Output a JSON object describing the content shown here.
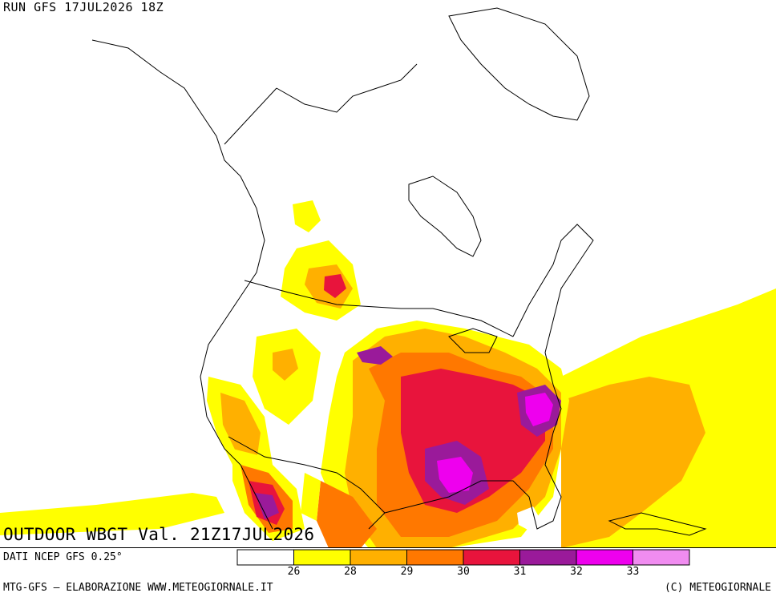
{
  "run_label": "RUN GFS 17JUL2026 18Z",
  "title": "OUTDOOR WBGT Val. 21Z17JUL2026",
  "source": "DATI NCEP GFS 0.25°",
  "footer_left": "MTG-GFS – ELABORAZIONE WWW.METEOGIORNALE.IT",
  "footer_right": "(C) METEOGIORNALE",
  "legend": {
    "colors": [
      "#ffffff",
      "#ffff00",
      "#ffb000",
      "#ff7800",
      "#e8143c",
      "#9a1a9a",
      "#ee00ee",
      "#f08cf0"
    ],
    "ticks": [
      "26",
      "28",
      "29",
      "30",
      "31",
      "32",
      "33"
    ]
  }
}
